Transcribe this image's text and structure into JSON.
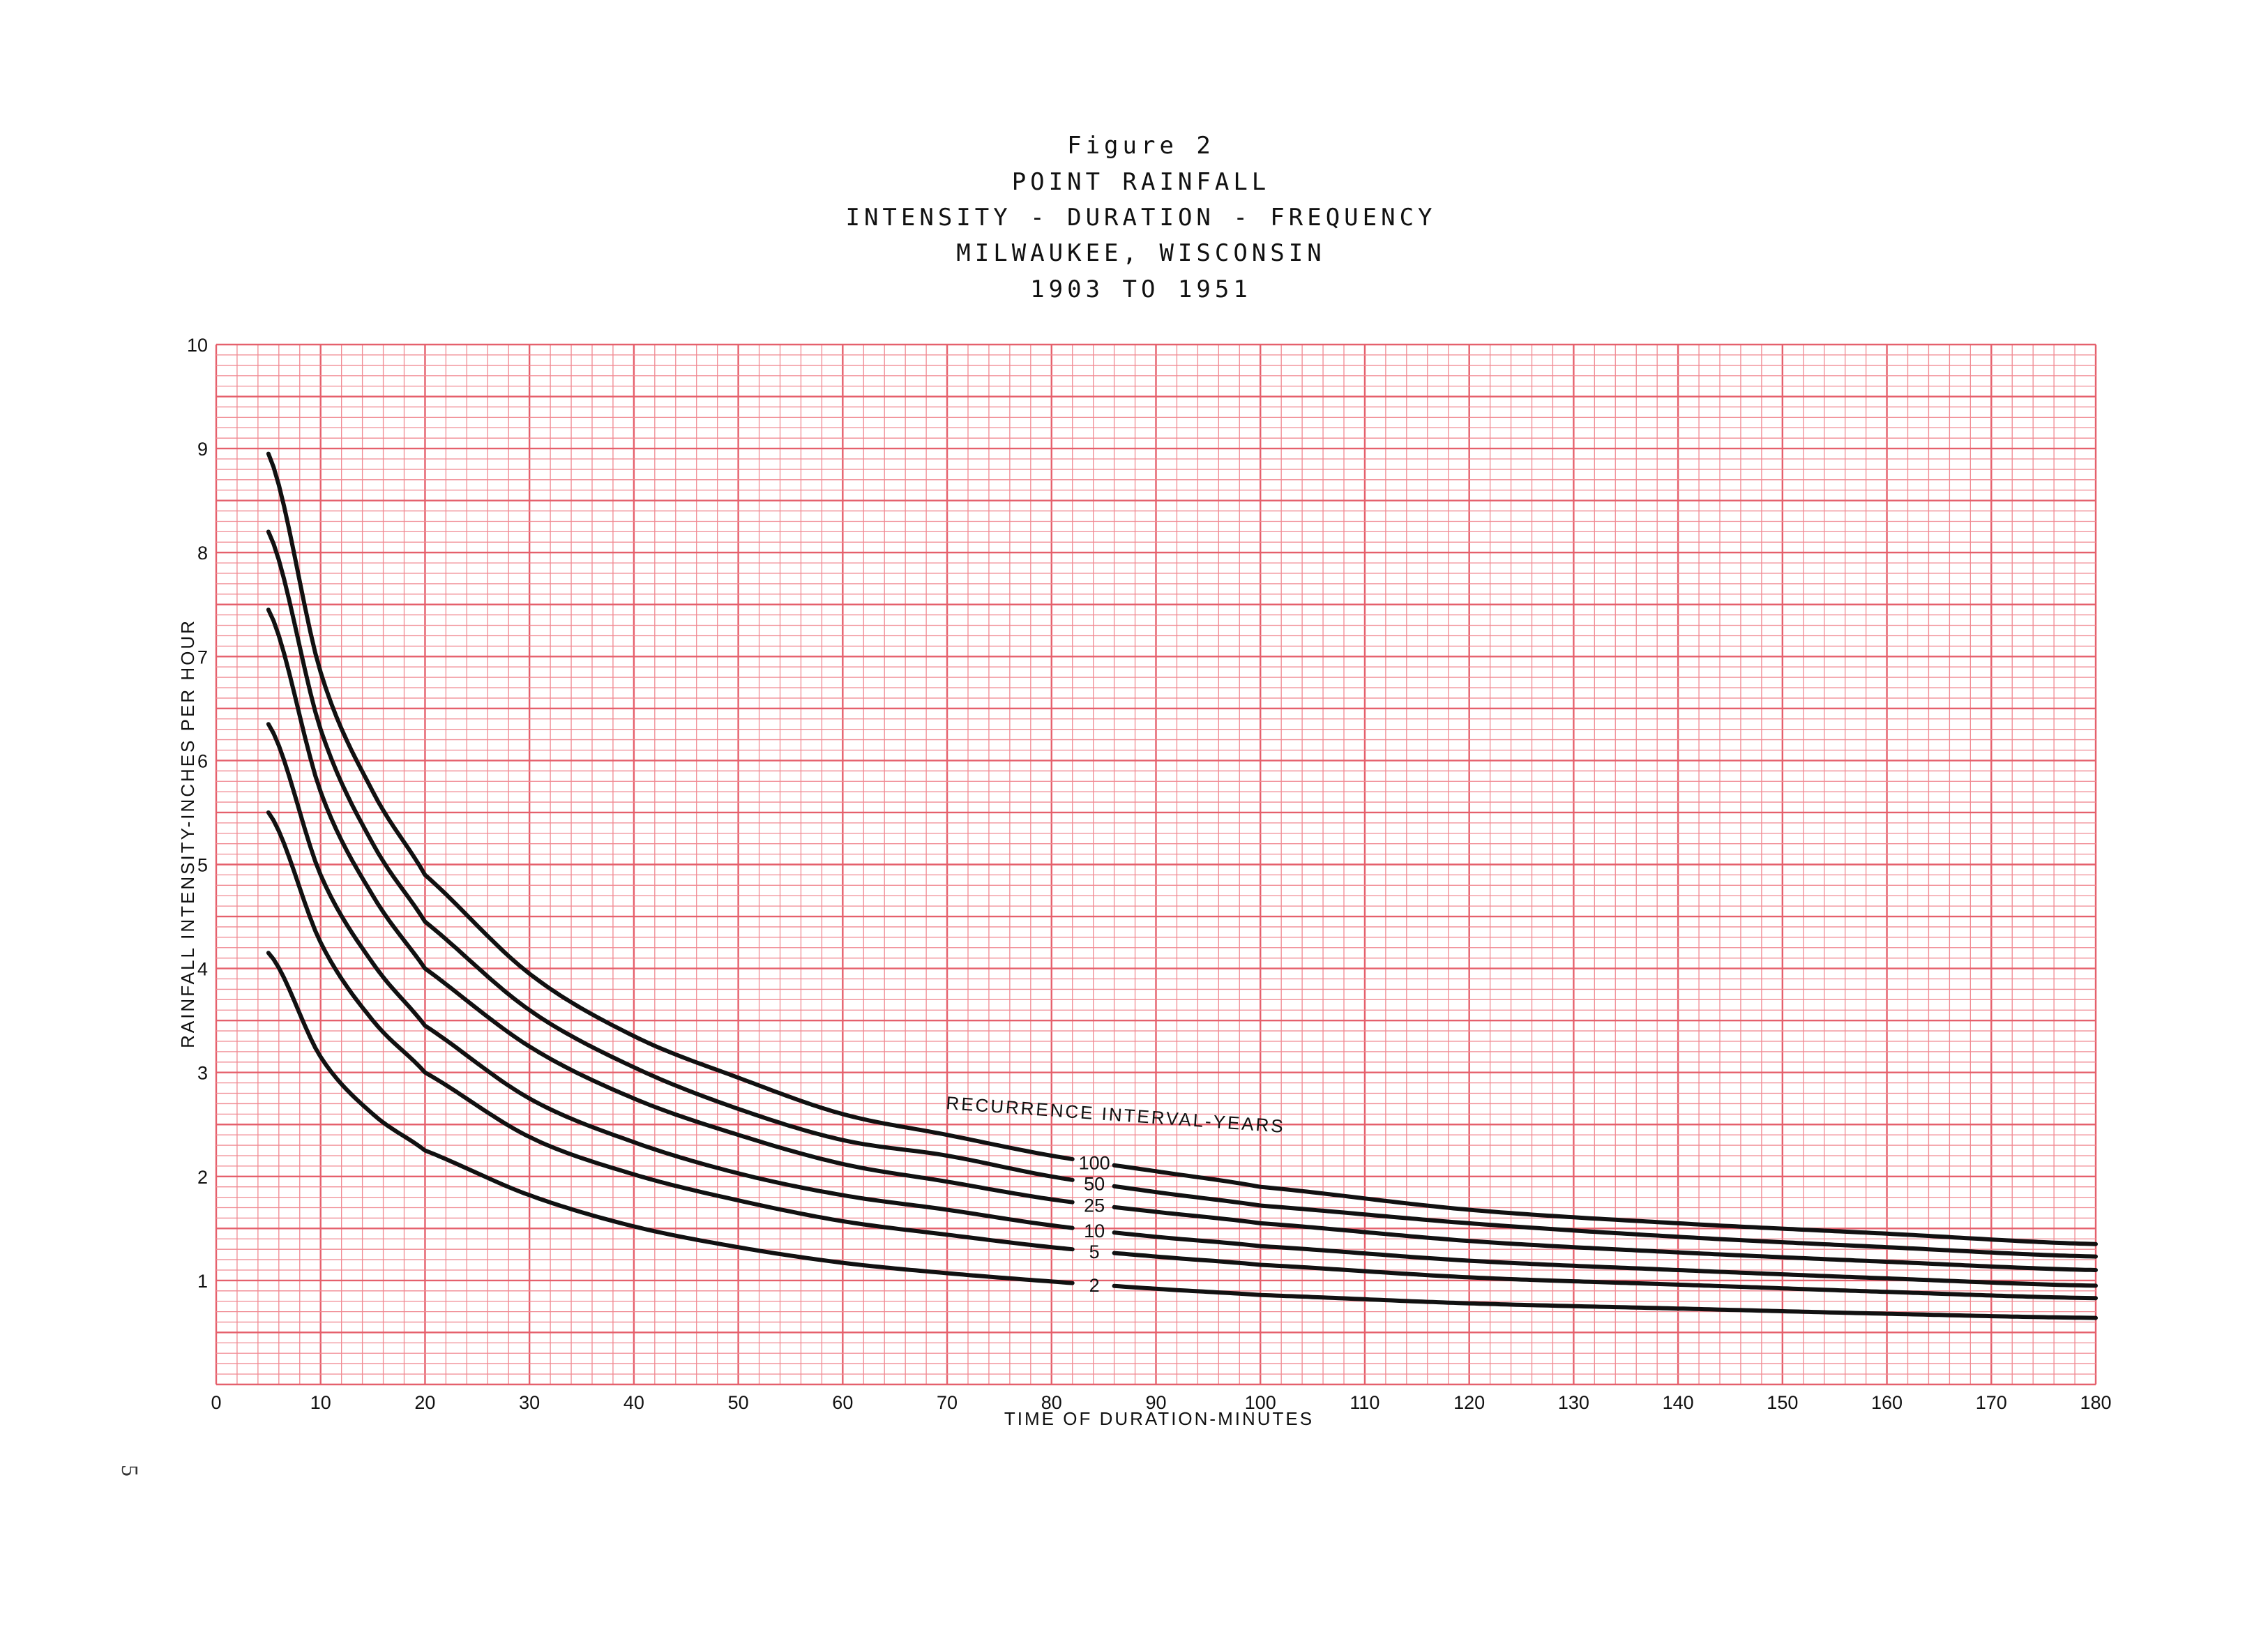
{
  "page_number": "5",
  "chart_data": {
    "type": "line",
    "title_lines": [
      "Figure 2",
      "POINT RAINFALL",
      "INTENSITY - DURATION - FREQUENCY",
      "MILWAUKEE, WISCONSIN",
      "1903 TO 1951"
    ],
    "xlabel": "TIME OF DURATION-MINUTES",
    "ylabel": "RAINFALL INTENSITY-INCHES PER HOUR",
    "legend_title": "RECURRENCE INTERVAL-YEARS",
    "xlim": [
      0,
      180
    ],
    "ylim": [
      0,
      10
    ],
    "x_ticks": [
      "0",
      "10",
      "20",
      "30",
      "40",
      "50",
      "60",
      "70",
      "80",
      "90",
      "100",
      "110",
      "120",
      "130",
      "140",
      "150",
      "160",
      "170",
      "180"
    ],
    "y_ticks": [
      "1",
      "2",
      "3",
      "4",
      "5",
      "6",
      "7",
      "8",
      "9",
      "10"
    ],
    "grid": true,
    "grid_color": "#f08a92",
    "grid_major_color": "#e5606c",
    "line_color": "#111111",
    "x": [
      5,
      10,
      15,
      20,
      30,
      40,
      50,
      60,
      70,
      80,
      90,
      100,
      120,
      140,
      160,
      180
    ],
    "series": [
      {
        "name": "100",
        "values": [
          8.95,
          6.85,
          5.7,
          4.9,
          3.95,
          3.35,
          2.95,
          2.6,
          2.4,
          2.2,
          2.05,
          1.9,
          1.68,
          1.55,
          1.45,
          1.35
        ]
      },
      {
        "name": "50",
        "values": [
          8.2,
          6.3,
          5.2,
          4.45,
          3.6,
          3.05,
          2.65,
          2.35,
          2.2,
          2.0,
          1.85,
          1.72,
          1.55,
          1.42,
          1.32,
          1.23
        ]
      },
      {
        "name": "25",
        "values": [
          7.45,
          5.7,
          4.7,
          4.0,
          3.25,
          2.75,
          2.4,
          2.12,
          1.95,
          1.78,
          1.66,
          1.55,
          1.38,
          1.27,
          1.18,
          1.1
        ]
      },
      {
        "name": "10",
        "values": [
          6.35,
          4.9,
          4.05,
          3.45,
          2.75,
          2.33,
          2.03,
          1.82,
          1.68,
          1.53,
          1.42,
          1.33,
          1.19,
          1.1,
          1.02,
          0.95
        ]
      },
      {
        "name": "5",
        "values": [
          5.5,
          4.25,
          3.5,
          3.0,
          2.38,
          2.02,
          1.77,
          1.57,
          1.44,
          1.32,
          1.23,
          1.15,
          1.03,
          0.96,
          0.89,
          0.83
        ]
      },
      {
        "name": "2",
        "values": [
          4.15,
          3.15,
          2.6,
          2.25,
          1.82,
          1.52,
          1.32,
          1.17,
          1.07,
          0.99,
          0.92,
          0.86,
          0.78,
          0.73,
          0.68,
          0.64
        ]
      }
    ]
  }
}
